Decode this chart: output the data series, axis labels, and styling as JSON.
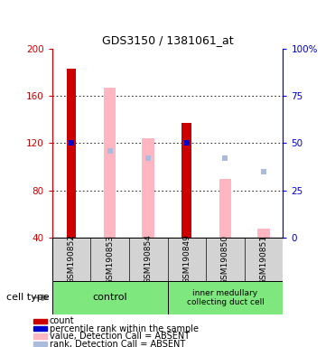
{
  "title": "GDS3150 / 1381061_at",
  "samples": [
    "GSM190852",
    "GSM190853",
    "GSM190854",
    "GSM190849",
    "GSM190850",
    "GSM190851"
  ],
  "count_values": [
    183,
    null,
    null,
    137,
    null,
    null
  ],
  "count_color": "#CC0000",
  "value_absent": [
    null,
    167,
    124,
    null,
    90,
    48
  ],
  "value_absent_color": "#FFB6C1",
  "rank_absent_pct": [
    null,
    46,
    42,
    null,
    42,
    35
  ],
  "rank_absent_color": "#AABBDD",
  "percentile_pct": [
    50,
    null,
    null,
    50,
    null,
    null
  ],
  "percentile_color": "#0000CC",
  "ylim_left": [
    40,
    200
  ],
  "ylim_right": [
    0,
    100
  ],
  "yticks_left": [
    40,
    80,
    120,
    160,
    200
  ],
  "yticks_right": [
    0,
    25,
    50,
    75,
    100
  ],
  "left_axis_color": "#CC0000",
  "right_axis_color": "#0000CC",
  "bar_width": 0.25,
  "legend_items": [
    {
      "label": "count",
      "color": "#CC0000"
    },
    {
      "label": "percentile rank within the sample",
      "color": "#0000CC"
    },
    {
      "label": "value, Detection Call = ABSENT",
      "color": "#FFB6C1"
    },
    {
      "label": "rank, Detection Call = ABSENT",
      "color": "#AABBDD"
    }
  ]
}
